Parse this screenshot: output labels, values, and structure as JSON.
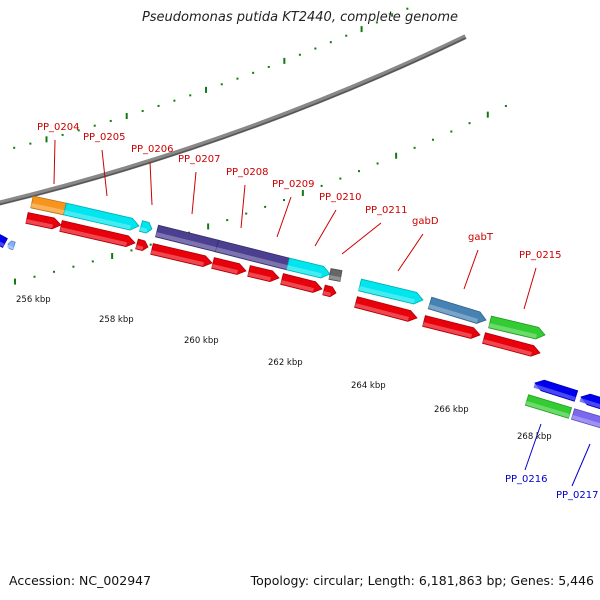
{
  "title": "Pseudomonas putida KT2440, complete genome",
  "footer": {
    "accession": "Accession: NC_002947",
    "topology": "Topology: circular; Length: 6,181,863 bp; Genes: 5,446"
  },
  "colors": {
    "red": "#e8000b",
    "cyan": "#00e5ee",
    "orange": "#f7941d",
    "indigo": "#4b3f8f",
    "steelblue": "#4682b4",
    "green": "#33cc33",
    "blue": "#0000ee",
    "lightblue": "#7fb0ff",
    "violet": "#7b68ee",
    "gray": "#666666",
    "tick_green": "#117a11",
    "label_red": "#cc0000",
    "label_blue": "#0000cc"
  },
  "scale_labels": [
    "256 kbp",
    "258 kbp",
    "260 kbp",
    "262 kbp",
    "264 kbp",
    "266 kbp",
    "268 kbp"
  ],
  "gene_labels_top": [
    "PP_0204",
    "PP_0205",
    "PP_0206",
    "PP_0207",
    "PP_0208",
    "PP_0209",
    "PP_0210",
    "PP_0211",
    "gabD",
    "gabT",
    "PP_0215"
  ],
  "gene_labels_bottom": [
    "PP_0216",
    "PP_0217"
  ]
}
